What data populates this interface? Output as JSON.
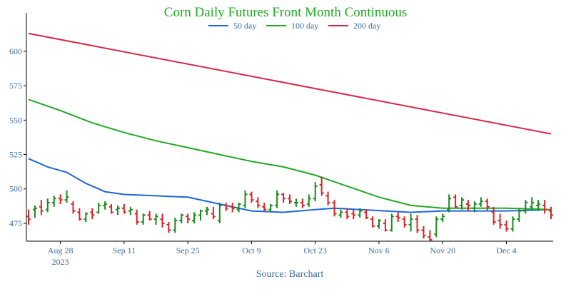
{
  "chart_data": {
    "type": "ohlc",
    "title": "Corn Daily Futures Front Month Continuous",
    "source_label": "Source: Barchart",
    "xlabel": "",
    "ylabel": "",
    "ylim": [
      462,
      628
    ],
    "x_range": [
      0,
      82
    ],
    "yticks": [
      475,
      500,
      525,
      550,
      575,
      600
    ],
    "xticks": [
      {
        "pos": 5,
        "label": "Aug 28",
        "sub": "2023"
      },
      {
        "pos": 15,
        "label": "Sep 11",
        "sub": ""
      },
      {
        "pos": 25,
        "label": "Sep 25",
        "sub": ""
      },
      {
        "pos": 35,
        "label": "Oct 9",
        "sub": ""
      },
      {
        "pos": 45,
        "label": "Oct 23",
        "sub": ""
      },
      {
        "pos": 55,
        "label": "Nov 6",
        "sub": ""
      },
      {
        "pos": 65,
        "label": "Nov 20",
        "sub": ""
      },
      {
        "pos": 75,
        "label": "Dec 4",
        "sub": ""
      }
    ],
    "grid": false,
    "legend_position": "top-center",
    "colors": {
      "title": "#22aa22",
      "up": "#1a8a1a",
      "down": "#dd2222",
      "ma50": "#1f66dd",
      "ma100": "#22aa22",
      "ma200": "#d6284a",
      "axis": "#000000",
      "tick_labels": "#3a6ea5",
      "source": "#3a6ea5"
    },
    "ohlc": [
      [
        480,
        485,
        474,
        478
      ],
      [
        485,
        488,
        479,
        486
      ],
      [
        487,
        492,
        481,
        484
      ],
      [
        485,
        493,
        483,
        490
      ],
      [
        490,
        495,
        487,
        493
      ],
      [
        493,
        496,
        489,
        492
      ],
      [
        492,
        499,
        490,
        494
      ],
      [
        489,
        491,
        482,
        484
      ],
      [
        483,
        486,
        477,
        478
      ],
      [
        478,
        483,
        476,
        482
      ],
      [
        483,
        486,
        478,
        481
      ],
      [
        483,
        490,
        482,
        488
      ],
      [
        488,
        491,
        485,
        489
      ],
      [
        487,
        489,
        482,
        483
      ],
      [
        485,
        488,
        481,
        486
      ],
      [
        486,
        489,
        482,
        483
      ],
      [
        484,
        487,
        481,
        485
      ],
      [
        482,
        485,
        474,
        476
      ],
      [
        476,
        482,
        474,
        481
      ],
      [
        481,
        484,
        477,
        478
      ],
      [
        478,
        482,
        474,
        480
      ],
      [
        478,
        482,
        472,
        475
      ],
      [
        474,
        476,
        468,
        470
      ],
      [
        470,
        479,
        468,
        477
      ],
      [
        477,
        482,
        475,
        481
      ],
      [
        480,
        482,
        475,
        478
      ],
      [
        477,
        483,
        475,
        481
      ],
      [
        481,
        485,
        477,
        484
      ],
      [
        484,
        487,
        481,
        485
      ],
      [
        482,
        487,
        478,
        480
      ],
      [
        477,
        490,
        475,
        488
      ],
      [
        488,
        490,
        484,
        486
      ],
      [
        487,
        490,
        483,
        486
      ],
      [
        485,
        490,
        483,
        489
      ],
      [
        488,
        499,
        486,
        496
      ],
      [
        496,
        498,
        490,
        492
      ],
      [
        491,
        494,
        486,
        488
      ],
      [
        487,
        490,
        484,
        485
      ],
      [
        485,
        489,
        483,
        488
      ],
      [
        488,
        499,
        486,
        496
      ],
      [
        496,
        497,
        490,
        493
      ],
      [
        493,
        496,
        489,
        491
      ],
      [
        490,
        493,
        487,
        490
      ],
      [
        490,
        493,
        486,
        488
      ],
      [
        489,
        496,
        487,
        493
      ],
      [
        493,
        505,
        491,
        502
      ],
      [
        503,
        509,
        495,
        497
      ],
      [
        495,
        498,
        488,
        490
      ],
      [
        490,
        492,
        480,
        482
      ],
      [
        481,
        485,
        479,
        483
      ],
      [
        483,
        486,
        478,
        480
      ],
      [
        482,
        485,
        478,
        481
      ],
      [
        481,
        486,
        479,
        484
      ],
      [
        483,
        485,
        478,
        479
      ],
      [
        478,
        480,
        472,
        473
      ],
      [
        473,
        478,
        471,
        477
      ],
      [
        475,
        478,
        469,
        470
      ],
      [
        470,
        482,
        469,
        480
      ],
      [
        480,
        483,
        476,
        479
      ],
      [
        478,
        480,
        472,
        474
      ],
      [
        474,
        482,
        469,
        478
      ],
      [
        478,
        481,
        468,
        470
      ],
      [
        470,
        473,
        464,
        466
      ],
      [
        465,
        470,
        462,
        463
      ],
      [
        467,
        480,
        465,
        478
      ],
      [
        478,
        482,
        476,
        480
      ],
      [
        485,
        496,
        483,
        493
      ],
      [
        494,
        496,
        486,
        487
      ],
      [
        488,
        494,
        485,
        492
      ],
      [
        489,
        492,
        484,
        488
      ],
      [
        486,
        491,
        483,
        489
      ],
      [
        489,
        494,
        487,
        491
      ],
      [
        491,
        493,
        484,
        487
      ],
      [
        483,
        487,
        474,
        476
      ],
      [
        477,
        482,
        471,
        474
      ],
      [
        474,
        477,
        469,
        471
      ],
      [
        471,
        480,
        469,
        478
      ],
      [
        478,
        486,
        476,
        484
      ],
      [
        484,
        492,
        482,
        490
      ],
      [
        487,
        494,
        485,
        490
      ],
      [
        488,
        492,
        484,
        489
      ],
      [
        488,
        492,
        482,
        485
      ],
      [
        484,
        487,
        478,
        481
      ]
    ],
    "series": [
      {
        "name": "50 day",
        "color": "#1f66dd",
        "points": [
          [
            0,
            522
          ],
          [
            3,
            516
          ],
          [
            6,
            512
          ],
          [
            9,
            504
          ],
          [
            12,
            498
          ],
          [
            15,
            496
          ],
          [
            20,
            495
          ],
          [
            25,
            494
          ],
          [
            30,
            489
          ],
          [
            35,
            484
          ],
          [
            40,
            483
          ],
          [
            45,
            485
          ],
          [
            48,
            486
          ],
          [
            52,
            485
          ],
          [
            56,
            484
          ],
          [
            60,
            483
          ],
          [
            65,
            484
          ],
          [
            70,
            484
          ],
          [
            75,
            484
          ],
          [
            82,
            485
          ]
        ]
      },
      {
        "name": "100 day",
        "color": "#22aa22",
        "points": [
          [
            0,
            565
          ],
          [
            5,
            557
          ],
          [
            10,
            548
          ],
          [
            15,
            541
          ],
          [
            20,
            535
          ],
          [
            25,
            530
          ],
          [
            30,
            525
          ],
          [
            35,
            520
          ],
          [
            40,
            516
          ],
          [
            45,
            510
          ],
          [
            50,
            502
          ],
          [
            55,
            494
          ],
          [
            60,
            488
          ],
          [
            65,
            486
          ],
          [
            70,
            486
          ],
          [
            75,
            486
          ],
          [
            82,
            485
          ]
        ]
      },
      {
        "name": "200 day",
        "color": "#d6284a",
        "points": [
          [
            0,
            613
          ],
          [
            82,
            540
          ]
        ]
      }
    ]
  }
}
